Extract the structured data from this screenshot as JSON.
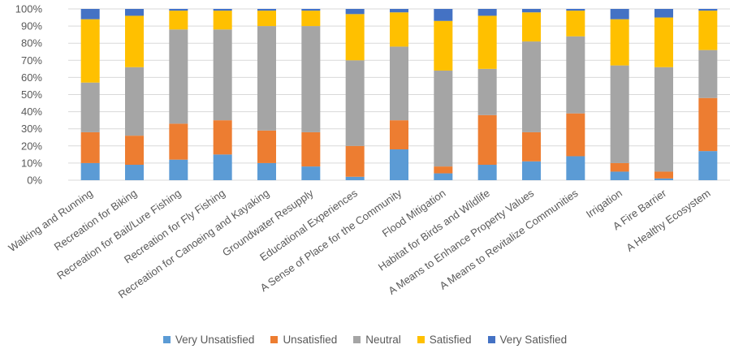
{
  "chart_data": {
    "type": "bar",
    "stacked": true,
    "percent": true,
    "title": "",
    "xlabel": "",
    "ylabel": "",
    "ylim": [
      0,
      100
    ],
    "yticks": [
      "0%",
      "10%",
      "20%",
      "30%",
      "40%",
      "50%",
      "60%",
      "70%",
      "80%",
      "90%",
      "100%"
    ],
    "grid": true,
    "legend_position": "bottom",
    "categories": [
      "Walking and Running",
      "Recreation for Biking",
      "Recreation for Bait/Lure Fishing",
      "Recreation for Fly Fishing",
      "Recreation for Canoeing and Kayaking",
      "Groundwater Resupply",
      "Educational Experiences",
      "A Sense of Place for the Community",
      "Flood Mitigation",
      "Habitat for Birds and Wildlife",
      "A Means to Enhance Property Values",
      "A Means to Revitalize Communities",
      "Irrigation",
      "A Fire Barrier",
      "A Healthy Ecosystem"
    ],
    "series": [
      {
        "name": "Very Unsatisfied",
        "color": "#5b9bd5",
        "values": [
          10,
          9,
          12,
          15,
          10,
          8,
          2,
          18,
          4,
          9,
          11,
          14,
          5,
          1,
          17
        ]
      },
      {
        "name": "Unsatisfied",
        "color": "#ed7d31",
        "values": [
          18,
          17,
          21,
          20,
          19,
          20,
          18,
          17,
          4,
          29,
          17,
          25,
          5,
          4,
          31
        ]
      },
      {
        "name": "Neutral",
        "color": "#a5a5a5",
        "values": [
          29,
          40,
          55,
          53,
          61,
          62,
          50,
          43,
          56,
          27,
          53,
          45,
          57,
          61,
          28
        ]
      },
      {
        "name": "Satisfied",
        "color": "#ffc000",
        "values": [
          37,
          30,
          11,
          11,
          9,
          9,
          27,
          20,
          29,
          31,
          17,
          15,
          27,
          29,
          23
        ]
      },
      {
        "name": "Very Satisfied",
        "color": "#4472c4",
        "values": [
          6,
          4,
          1,
          1,
          1,
          1,
          3,
          2,
          7,
          4,
          2,
          1,
          6,
          5,
          1
        ]
      }
    ]
  }
}
